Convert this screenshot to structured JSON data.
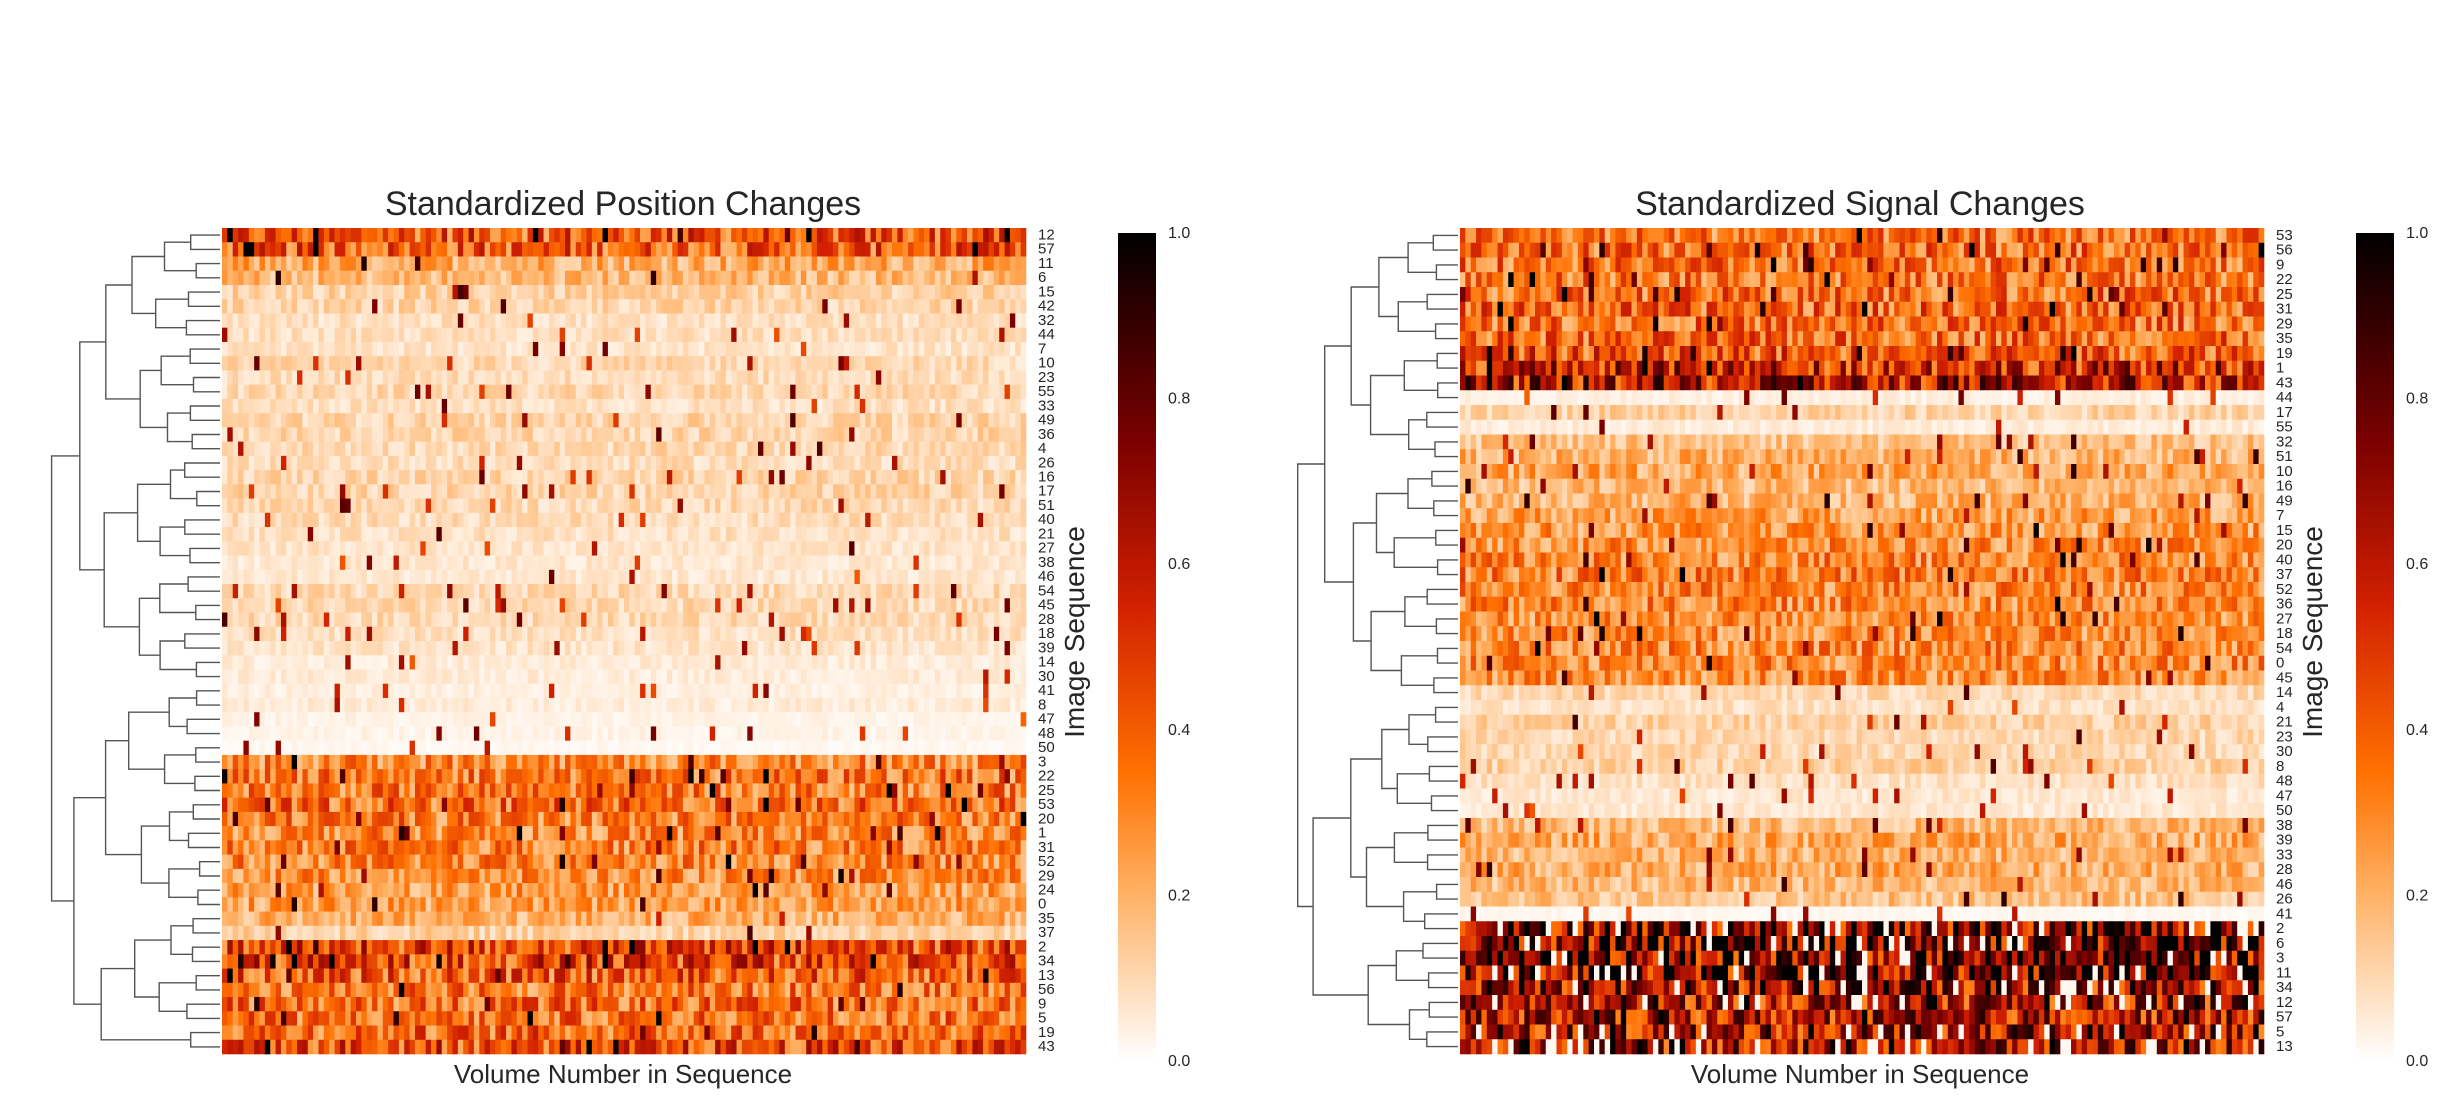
{
  "chart_data": [
    {
      "type": "heatmap",
      "title": "Standardized Position Changes",
      "xlabel": "Volume Number in Sequence",
      "ylabel": "Image Sequence",
      "colormap": "gist_heat_r",
      "color_range": [
        0.0,
        1.0
      ],
      "colorbar_ticks": [
        "0.0",
        "0.2",
        "0.4",
        "0.6",
        "0.8",
        "1.0"
      ],
      "dendrogram": "rows",
      "row_labels": [
        "12",
        "57",
        "11",
        "6",
        "15",
        "42",
        "32",
        "44",
        "7",
        "10",
        "23",
        "55",
        "33",
        "49",
        "36",
        "4",
        "26",
        "16",
        "17",
        "51",
        "40",
        "21",
        "27",
        "38",
        "46",
        "54",
        "45",
        "28",
        "18",
        "39",
        "14",
        "30",
        "41",
        "8",
        "47",
        "48",
        "50",
        "3",
        "22",
        "25",
        "53",
        "20",
        "1",
        "31",
        "52",
        "29",
        "24",
        "0",
        "35",
        "37",
        "2",
        "34",
        "13",
        "56",
        "9",
        "5",
        "19",
        "43"
      ],
      "row_mean_levels": [
        0.42,
        0.4,
        0.22,
        0.18,
        0.12,
        0.11,
        0.08,
        0.08,
        0.07,
        0.1,
        0.09,
        0.1,
        0.08,
        0.11,
        0.11,
        0.1,
        0.09,
        0.11,
        0.11,
        0.1,
        0.09,
        0.08,
        0.07,
        0.06,
        0.06,
        0.1,
        0.1,
        0.1,
        0.08,
        0.07,
        0.05,
        0.05,
        0.04,
        0.05,
        0.03,
        0.03,
        0.02,
        0.3,
        0.34,
        0.33,
        0.36,
        0.32,
        0.3,
        0.32,
        0.3,
        0.28,
        0.25,
        0.24,
        0.2,
        0.12,
        0.46,
        0.46,
        0.4,
        0.34,
        0.36,
        0.35,
        0.38,
        0.44
      ]
    },
    {
      "type": "heatmap",
      "title": "Standardized Signal Changes",
      "xlabel": "Volume Number in Sequence",
      "ylabel": "Image Sequence",
      "colormap": "gist_heat_r",
      "color_range": [
        0.0,
        1.0
      ],
      "colorbar_ticks": [
        "0.0",
        "0.2",
        "0.4",
        "0.6",
        "0.8",
        "1.0"
      ],
      "dendrogram": "rows",
      "row_labels": [
        "53",
        "56",
        "9",
        "22",
        "25",
        "31",
        "29",
        "35",
        "19",
        "1",
        "43",
        "44",
        "17",
        "55",
        "32",
        "51",
        "10",
        "16",
        "49",
        "7",
        "15",
        "20",
        "40",
        "37",
        "52",
        "36",
        "27",
        "18",
        "54",
        "0",
        "45",
        "14",
        "4",
        "21",
        "23",
        "30",
        "8",
        "48",
        "47",
        "50",
        "38",
        "39",
        "33",
        "28",
        "46",
        "26",
        "41",
        "2",
        "6",
        "3",
        "11",
        "34",
        "12",
        "57",
        "5",
        "13"
      ],
      "row_mean_levels": [
        0.34,
        0.36,
        0.35,
        0.34,
        0.36,
        0.38,
        0.36,
        0.37,
        0.42,
        0.55,
        0.6,
        0.04,
        0.12,
        0.05,
        0.16,
        0.2,
        0.22,
        0.18,
        0.2,
        0.24,
        0.26,
        0.28,
        0.3,
        0.32,
        0.3,
        0.3,
        0.28,
        0.28,
        0.3,
        0.3,
        0.28,
        0.1,
        0.08,
        0.12,
        0.1,
        0.1,
        0.12,
        0.08,
        0.06,
        0.06,
        0.18,
        0.22,
        0.2,
        0.22,
        0.18,
        0.16,
        0.02,
        0.75,
        0.78,
        0.74,
        0.76,
        0.66,
        0.62,
        0.6,
        0.62,
        0.64
      ]
    }
  ]
}
